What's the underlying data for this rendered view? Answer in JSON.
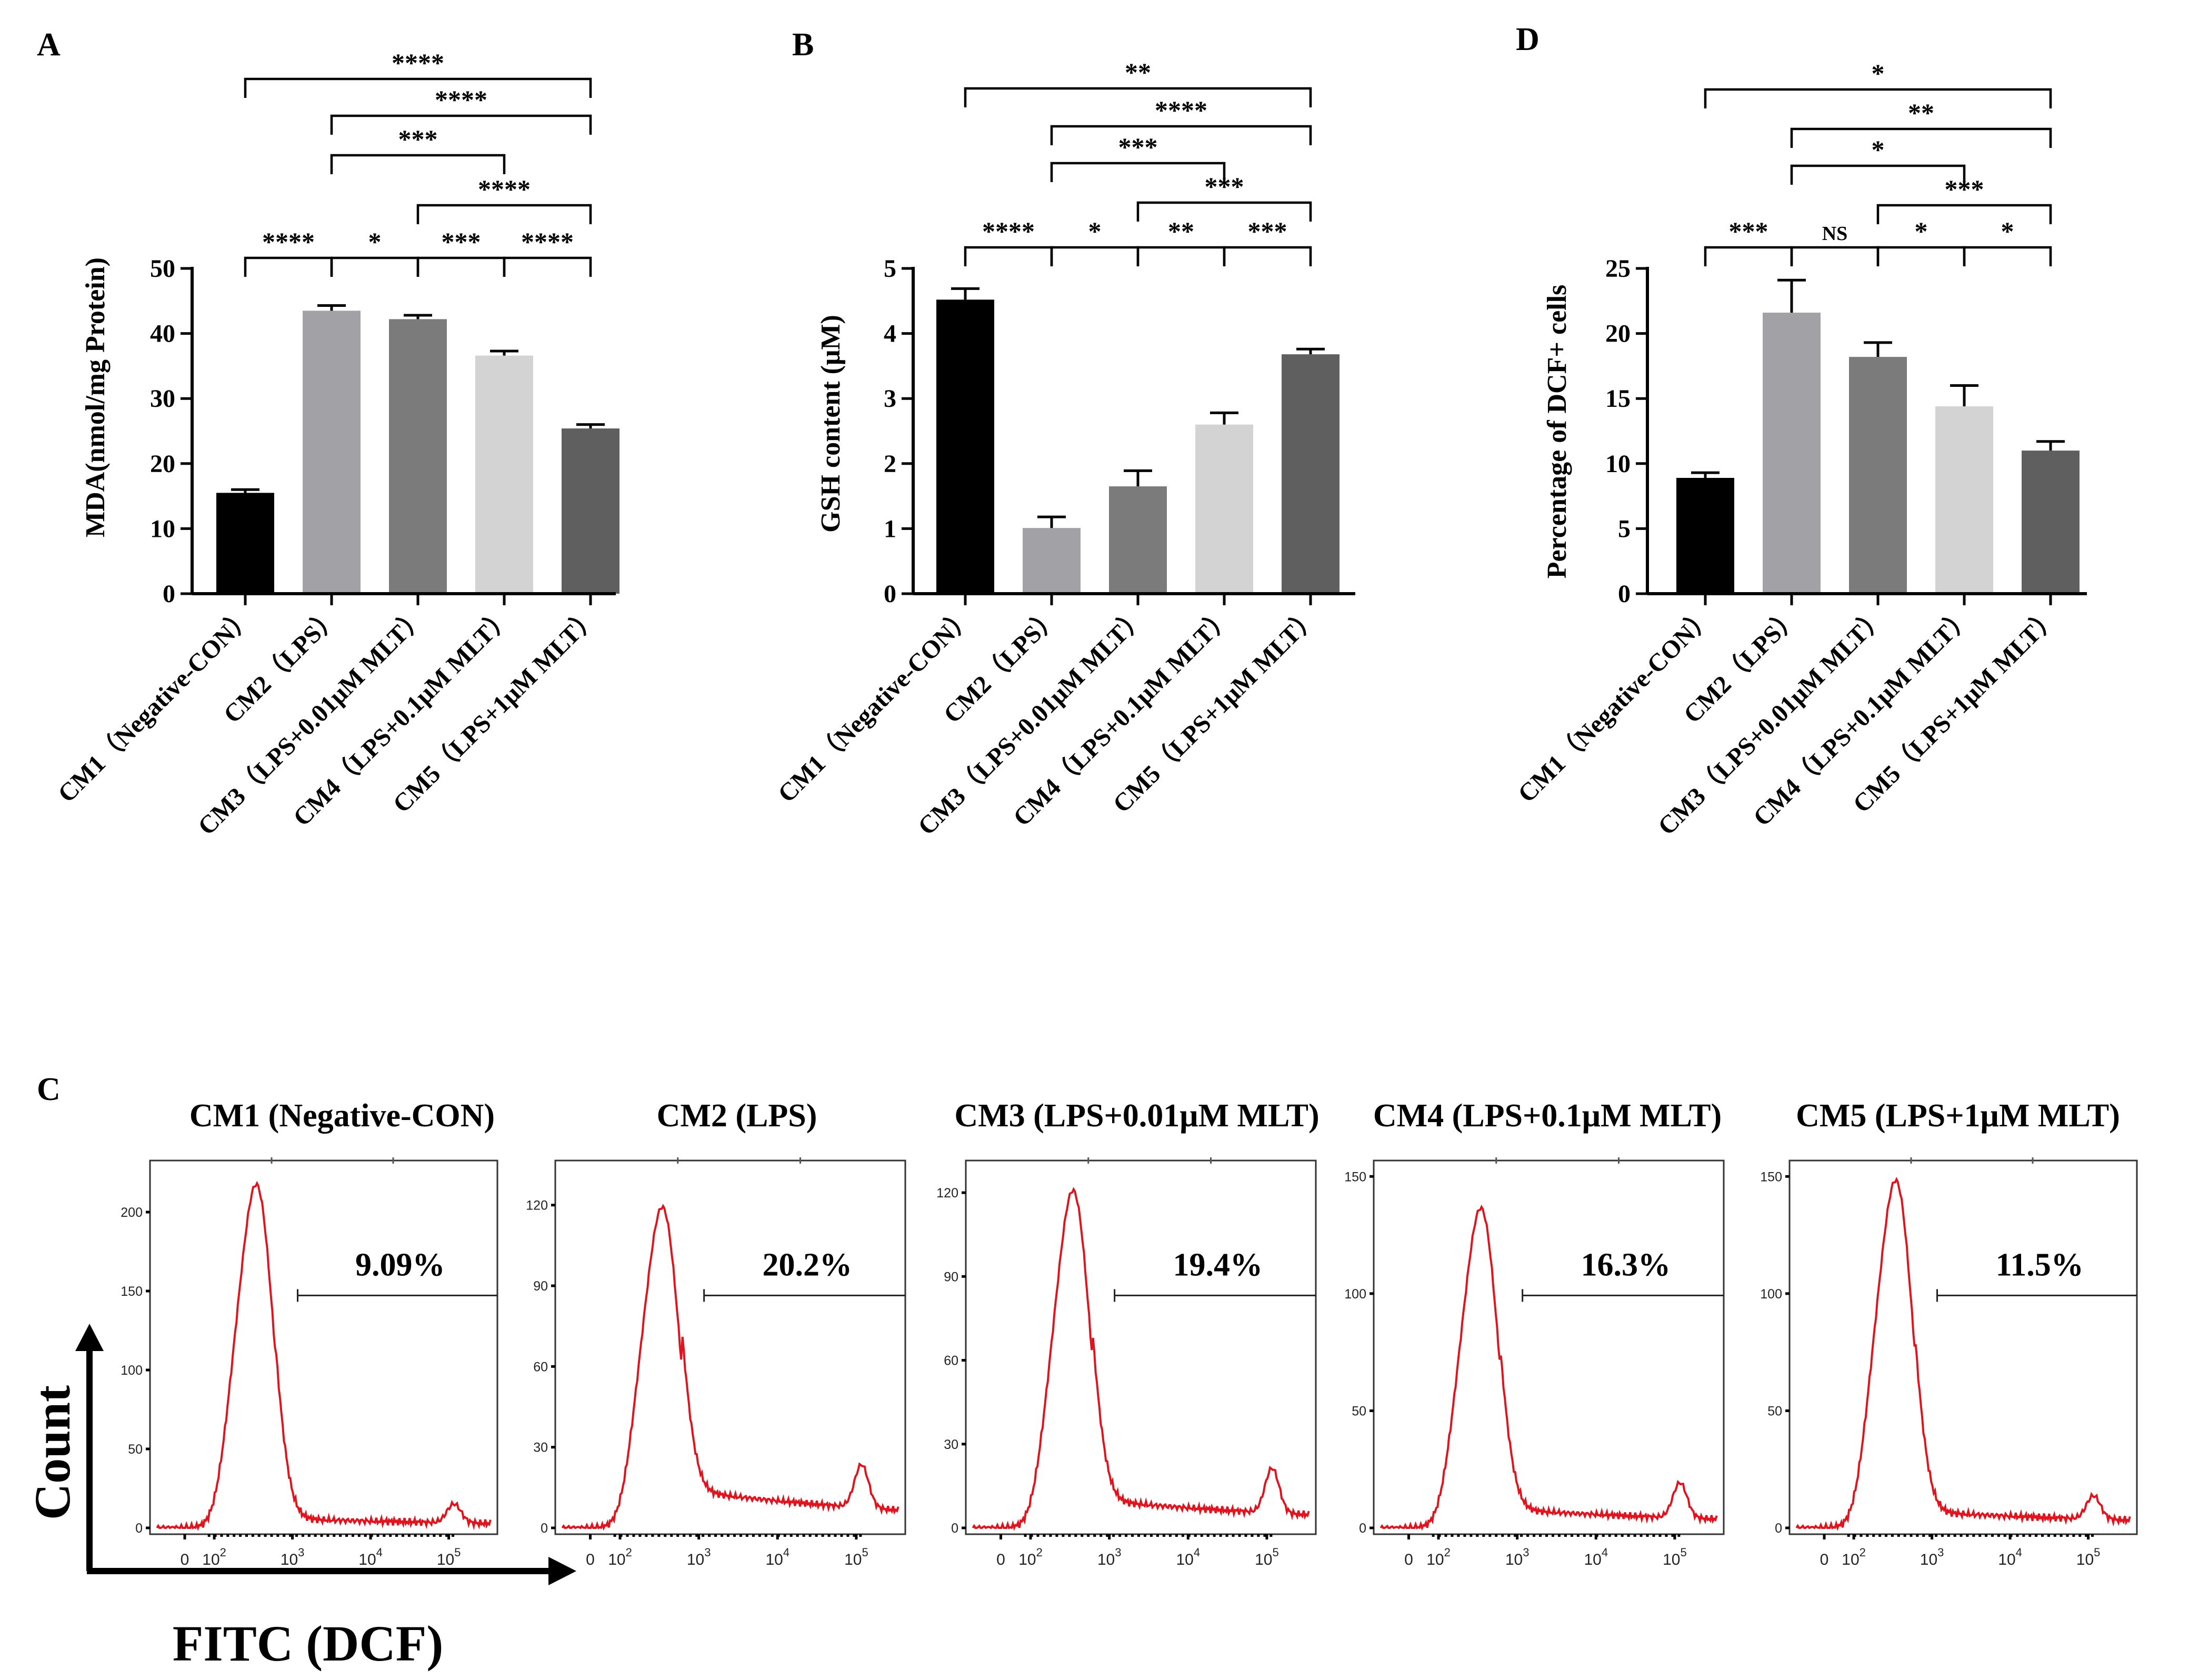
{
  "chart_data": [
    {
      "id": "A",
      "panel_letter": "A",
      "type": "bar",
      "ylabel": "MDA(nmol/mg Protein)",
      "ylim": [
        0,
        50
      ],
      "yticks": [
        0,
        10,
        20,
        30,
        40,
        50
      ],
      "categories": [
        "CM1（Negative-CON）",
        "CM2（LPS）",
        "CM3（LPS+0.01μM MLT）",
        "CM4（LPS+0.1μM MLT）",
        "CM5（LPS+1μM MLT）"
      ],
      "values": [
        15.5,
        43.5,
        42.2,
        36.6,
        25.4
      ],
      "errors": [
        0.5,
        0.8,
        0.6,
        0.7,
        0.6
      ],
      "colors": [
        "#000000",
        "#a1a1a6",
        "#7b7b7b",
        "#d3d3d3",
        "#5f5f5f"
      ],
      "comparisons": [
        {
          "a": 0,
          "b": 1,
          "label": "****"
        },
        {
          "a": 1,
          "b": 2,
          "label": "*"
        },
        {
          "a": 2,
          "b": 3,
          "label": "***"
        },
        {
          "a": 3,
          "b": 4,
          "label": "****"
        },
        {
          "a": 2,
          "b": 4,
          "label": "****"
        },
        {
          "a": 1,
          "b": 3,
          "label": "***"
        },
        {
          "a": 1,
          "b": 4,
          "label": "****"
        },
        {
          "a": 0,
          "b": 4,
          "label": "****"
        }
      ]
    },
    {
      "id": "B",
      "panel_letter": "B",
      "type": "bar",
      "ylabel": "GSH content (μM)",
      "ylim": [
        0,
        5
      ],
      "yticks": [
        0,
        1,
        2,
        3,
        4,
        5
      ],
      "categories": [
        "CM1（Negative-CON）",
        "CM2（LPS）",
        "CM3（LPS+0.01μM MLT）",
        "CM4（LPS+0.1μM MLT）",
        "CM5（LPS+1μM MLT）"
      ],
      "values": [
        4.52,
        1.01,
        1.65,
        2.6,
        3.68
      ],
      "errors": [
        0.17,
        0.17,
        0.24,
        0.18,
        0.08
      ],
      "colors": [
        "#000000",
        "#a1a1a6",
        "#7b7b7b",
        "#d3d3d3",
        "#5f5f5f"
      ],
      "comparisons": [
        {
          "a": 0,
          "b": 1,
          "label": "****"
        },
        {
          "a": 1,
          "b": 2,
          "label": "*"
        },
        {
          "a": 2,
          "b": 3,
          "label": "**"
        },
        {
          "a": 3,
          "b": 4,
          "label": "***"
        },
        {
          "a": 2,
          "b": 4,
          "label": "***"
        },
        {
          "a": 1,
          "b": 3,
          "label": "***"
        },
        {
          "a": 1,
          "b": 4,
          "label": "****"
        },
        {
          "a": 0,
          "b": 4,
          "label": "**"
        }
      ]
    },
    {
      "id": "D",
      "panel_letter": "D",
      "type": "bar",
      "ylabel": "Percentage of DCF+ cells",
      "ylim": [
        0,
        25
      ],
      "yticks": [
        0,
        5,
        10,
        15,
        20,
        25
      ],
      "categories": [
        "CM1（Negative-CON）",
        "CM2（LPS）",
        "CM3（LPS+0.01μM MLT）",
        "CM4（LPS+0.1μM MLT）",
        "CM5（LPS+1μM MLT）"
      ],
      "values": [
        8.9,
        21.6,
        18.2,
        14.4,
        11.0
      ],
      "errors": [
        0.4,
        2.5,
        1.1,
        1.6,
        0.7
      ],
      "colors": [
        "#000000",
        "#a1a1a6",
        "#7b7b7b",
        "#d3d3d3",
        "#5f5f5f"
      ],
      "comparisons": [
        {
          "a": 0,
          "b": 1,
          "label": "***"
        },
        {
          "a": 1,
          "b": 2,
          "label": "NS"
        },
        {
          "a": 2,
          "b": 3,
          "label": "*"
        },
        {
          "a": 3,
          "b": 4,
          "label": "*"
        },
        {
          "a": 2,
          "b": 4,
          "label": "***"
        },
        {
          "a": 1,
          "b": 3,
          "label": "*"
        },
        {
          "a": 1,
          "b": 4,
          "label": "**"
        },
        {
          "a": 0,
          "b": 4,
          "label": "*"
        }
      ]
    },
    {
      "id": "C",
      "panel_letter": "C",
      "type": "line",
      "x_axis_label": "FITC (DCF)",
      "y_axis_label": "Count",
      "xticks": [
        "0",
        "10",
        "10",
        "10",
        "10"
      ],
      "xtick_exponents": [
        "",
        "2",
        "3",
        "4",
        "5"
      ],
      "panels": [
        {
          "title": "CM1 (Negative-CON)",
          "gate_percent": "9.09%",
          "ymax": 230,
          "yticks": [
            0,
            50,
            100,
            150,
            200
          ],
          "peak": 210,
          "shoulder": 0.68,
          "tail_bump": 12,
          "baseline": 6
        },
        {
          "title": "CM2 (LPS)",
          "gate_percent": "20.2%",
          "ymax": 135,
          "yticks": [
            0,
            30,
            60,
            90,
            120
          ],
          "peak": 115,
          "shoulder": 0.7,
          "tail_bump": 16,
          "baseline": 14
        },
        {
          "title": "CM3 (LPS+0.01μM MLT)",
          "gate_percent": "19.4%",
          "ymax": 130,
          "yticks": [
            0,
            30,
            60,
            90,
            120
          ],
          "peak": 117,
          "shoulder": 0.62,
          "tail_bump": 16,
          "baseline": 10
        },
        {
          "title": "CM4 (LPS+0.1μM MLT)",
          "gate_percent": "16.3%",
          "ymax": 155,
          "yticks": [
            0,
            50,
            100,
            150
          ],
          "peak": 132,
          "shoulder": 0.65,
          "tail_bump": 15,
          "baseline": 8
        },
        {
          "title": "CM5 (LPS+1μM MLT)",
          "gate_percent": "11.5%",
          "ymax": 155,
          "yticks": [
            0,
            50,
            100,
            150
          ],
          "peak": 143,
          "shoulder": 0.7,
          "tail_bump": 10,
          "baseline": 7
        }
      ]
    }
  ]
}
